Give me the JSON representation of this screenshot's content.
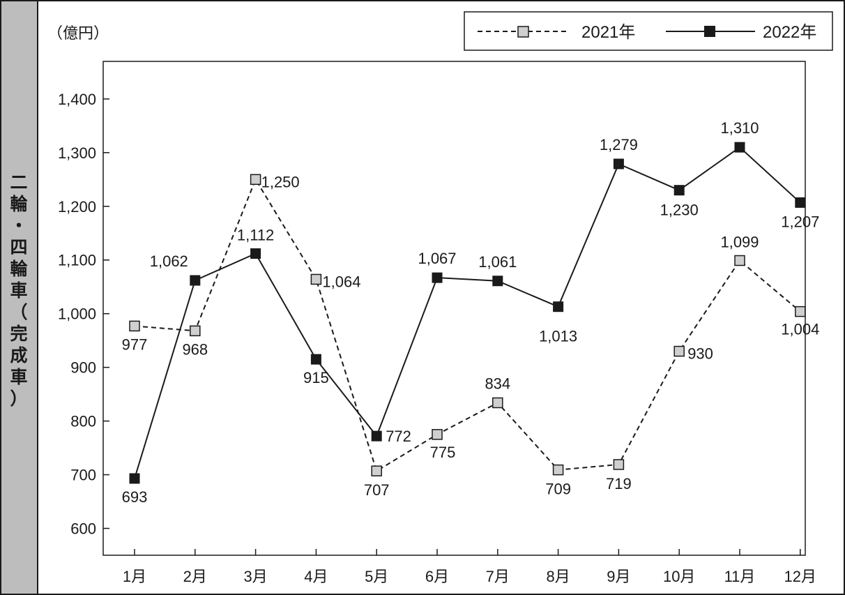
{
  "side_label": [
    "二",
    "輪",
    "・",
    "四",
    "輪",
    "車",
    "（",
    "完",
    "成",
    "車",
    "）"
  ],
  "chart_data": {
    "type": "line",
    "unit_label": "（億円）",
    "categories": [
      "1月",
      "2月",
      "3月",
      "4月",
      "5月",
      "6月",
      "7月",
      "8月",
      "9月",
      "10月",
      "11月",
      "12月"
    ],
    "ylim": [
      550,
      1470
    ],
    "yticks": [
      600,
      700,
      800,
      900,
      1000,
      1100,
      1200,
      1300,
      1400
    ],
    "ytick_labels": [
      "600",
      "700",
      "800",
      "900",
      "1,000",
      "1,100",
      "1,200",
      "1,300",
      "1,400"
    ],
    "grid": false,
    "legend_position": "top-right",
    "series": [
      {
        "name": "2021年",
        "line_style": "dashed",
        "marker_color": "#cfcfcf",
        "values": [
          977,
          968,
          1250,
          1064,
          707,
          775,
          834,
          709,
          719,
          930,
          1099,
          1004
        ],
        "value_labels": [
          "977",
          "968",
          "1,250",
          "1,064",
          "707",
          "775",
          "834",
          "709",
          "719",
          "930",
          "1,099",
          "1,004"
        ]
      },
      {
        "name": "2022年",
        "line_style": "solid",
        "marker_color": "#1a1a1a",
        "values": [
          693,
          1062,
          1112,
          915,
          772,
          1067,
          1061,
          1013,
          1279,
          1230,
          1310,
          1207
        ],
        "value_labels": [
          "693",
          "1,062",
          "1,112",
          "915",
          "772",
          "1,067",
          "1,061",
          "1,013",
          "1,279",
          "1,230",
          "1,310",
          "1,207"
        ]
      }
    ]
  }
}
